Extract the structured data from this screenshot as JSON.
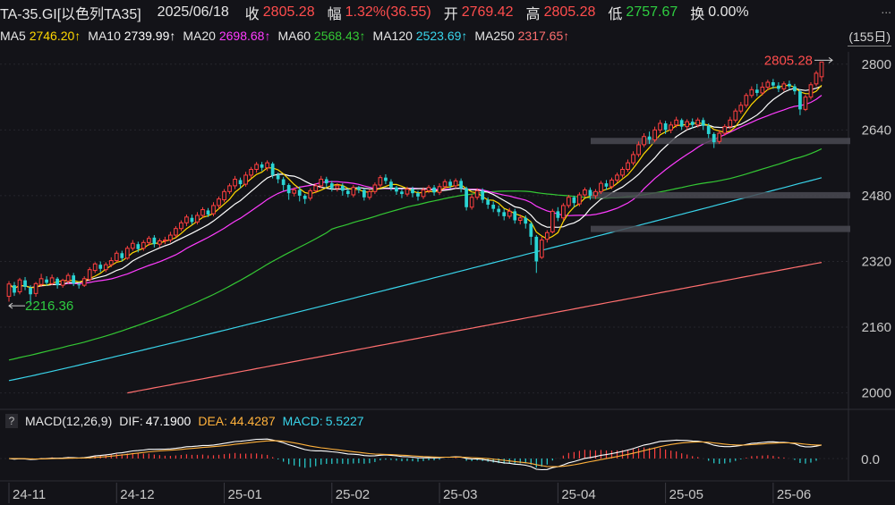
{
  "header": {
    "symbol": "TA-35.GI[以色列TA35]",
    "date": "2025/06/18",
    "close_label": "收",
    "close_value": "2805.28",
    "change_label": "幅",
    "change_value": "1.32%(36.55)",
    "open_label": "开",
    "open_value": "2769.42",
    "high_label": "高",
    "high_value": "2805.28",
    "low_label": "低",
    "low_value": "2757.67",
    "turnover_label": "换",
    "turnover_value": "0.00%",
    "more": "..."
  },
  "ma_legend": [
    {
      "label": "MA5",
      "value": "2746.20↑",
      "color": "#ffd700"
    },
    {
      "label": "MA10",
      "value": "2739.99↑",
      "color": "#ffffff"
    },
    {
      "label": "MA20",
      "value": "2698.68↑",
      "color": "#ff3cff"
    },
    {
      "label": "MA60",
      "value": "2568.43↑",
      "color": "#34c834"
    },
    {
      "label": "MA120",
      "value": "2523.69↑",
      "color": "#39d4ea"
    },
    {
      "label": "MA250",
      "value": "2317.65↑",
      "color": "#ff6f6f"
    }
  ],
  "period_label": "(155日)",
  "macd": {
    "help": "?",
    "title": "MACD(12,26,9)",
    "dif_label": "DIF:",
    "dif_value": "47.1900",
    "dif_color": "#ffffff",
    "dea_label": "DEA:",
    "dea_value": "44.4287",
    "dea_color": "#ffb13b",
    "macd_label": "MACD:",
    "macd_value": "5.5227",
    "macd_color": "#39d4ea"
  },
  "chart_data": {
    "type": "candlestick",
    "price_axis": {
      "ticks": [
        2000,
        2160,
        2320,
        2480,
        2640,
        2800
      ],
      "ylim": [
        1960,
        2830
      ]
    },
    "macd_axis": {
      "ticks": [
        0.0
      ],
      "tick_labels": [
        "0.0"
      ],
      "ylim": [
        -55,
        75
      ]
    },
    "x_labels": [
      "24-11",
      "24-12",
      "25-01",
      "25-02",
      "25-03",
      "25-04",
      "25-05",
      "25-06"
    ],
    "x_label_bar_index": [
      0,
      20,
      40,
      60,
      80,
      102,
      122,
      142
    ],
    "annotations": [
      {
        "text": "2805.28",
        "kind": "max",
        "bar": 153,
        "value": 2805.28
      },
      {
        "text": "2216.36",
        "kind": "min",
        "bar": 0,
        "value": 2216.36
      }
    ],
    "candles": [
      [
        2235,
        2265,
        2222,
        2272
      ],
      [
        2262,
        2244,
        2236,
        2270
      ],
      [
        2246,
        2275,
        2240,
        2280
      ],
      [
        2274,
        2258,
        2250,
        2282
      ],
      [
        2256,
        2240,
        2216,
        2262
      ],
      [
        2242,
        2266,
        2234,
        2270
      ],
      [
        2264,
        2278,
        2258,
        2290
      ],
      [
        2276,
        2268,
        2260,
        2284
      ],
      [
        2266,
        2280,
        2262,
        2288
      ],
      [
        2278,
        2262,
        2254,
        2282
      ],
      [
        2262,
        2274,
        2256,
        2278
      ],
      [
        2272,
        2286,
        2266,
        2292
      ],
      [
        2286,
        2266,
        2260,
        2292
      ],
      [
        2264,
        2262,
        2254,
        2270
      ],
      [
        2262,
        2278,
        2258,
        2284
      ],
      [
        2276,
        2300,
        2272,
        2306
      ],
      [
        2298,
        2314,
        2292,
        2318
      ],
      [
        2312,
        2302,
        2294,
        2320
      ],
      [
        2300,
        2312,
        2294,
        2318
      ],
      [
        2312,
        2322,
        2306,
        2330
      ],
      [
        2322,
        2340,
        2318,
        2346
      ],
      [
        2340,
        2328,
        2320,
        2346
      ],
      [
        2328,
        2352,
        2324,
        2358
      ],
      [
        2352,
        2364,
        2346,
        2372
      ],
      [
        2362,
        2350,
        2342,
        2368
      ],
      [
        2352,
        2366,
        2346,
        2372
      ],
      [
        2366,
        2376,
        2358,
        2382
      ],
      [
        2378,
        2362,
        2354,
        2384
      ],
      [
        2362,
        2370,
        2354,
        2376
      ],
      [
        2370,
        2372,
        2362,
        2380
      ],
      [
        2372,
        2384,
        2366,
        2392
      ],
      [
        2384,
        2400,
        2378,
        2406
      ],
      [
        2400,
        2414,
        2394,
        2420
      ],
      [
        2414,
        2428,
        2406,
        2434
      ],
      [
        2426,
        2416,
        2410,
        2434
      ],
      [
        2416,
        2432,
        2410,
        2440
      ],
      [
        2432,
        2446,
        2426,
        2452
      ],
      [
        2444,
        2434,
        2428,
        2450
      ],
      [
        2436,
        2456,
        2430,
        2464
      ],
      [
        2456,
        2472,
        2448,
        2478
      ],
      [
        2470,
        2490,
        2464,
        2496
      ],
      [
        2490,
        2504,
        2484,
        2510
      ],
      [
        2504,
        2520,
        2496,
        2528
      ],
      [
        2518,
        2508,
        2498,
        2524
      ],
      [
        2508,
        2530,
        2502,
        2538
      ],
      [
        2530,
        2544,
        2522,
        2550
      ],
      [
        2544,
        2556,
        2536,
        2562
      ],
      [
        2556,
        2548,
        2540,
        2562
      ],
      [
        2548,
        2560,
        2540,
        2566
      ],
      [
        2558,
        2530,
        2522,
        2562
      ],
      [
        2530,
        2520,
        2510,
        2536
      ],
      [
        2520,
        2506,
        2492,
        2526
      ],
      [
        2506,
        2486,
        2470,
        2510
      ],
      [
        2486,
        2494,
        2478,
        2500
      ],
      [
        2494,
        2480,
        2466,
        2502
      ],
      [
        2480,
        2472,
        2460,
        2484
      ],
      [
        2474,
        2492,
        2468,
        2498
      ],
      [
        2492,
        2504,
        2486,
        2510
      ],
      [
        2504,
        2520,
        2498,
        2528
      ],
      [
        2520,
        2510,
        2500,
        2526
      ],
      [
        2510,
        2498,
        2490,
        2516
      ],
      [
        2498,
        2504,
        2490,
        2510
      ],
      [
        2504,
        2492,
        2480,
        2510
      ],
      [
        2492,
        2484,
        2476,
        2498
      ],
      [
        2482,
        2500,
        2476,
        2506
      ],
      [
        2500,
        2494,
        2486,
        2504
      ],
      [
        2494,
        2476,
        2468,
        2498
      ],
      [
        2476,
        2490,
        2470,
        2496
      ],
      [
        2490,
        2506,
        2484,
        2512
      ],
      [
        2506,
        2524,
        2500,
        2530
      ],
      [
        2524,
        2516,
        2508,
        2532
      ],
      [
        2514,
        2500,
        2492,
        2520
      ],
      [
        2500,
        2490,
        2482,
        2504
      ],
      [
        2490,
        2484,
        2474,
        2496
      ],
      [
        2484,
        2496,
        2478,
        2502
      ],
      [
        2496,
        2486,
        2476,
        2502
      ],
      [
        2486,
        2478,
        2468,
        2492
      ],
      [
        2478,
        2494,
        2472,
        2500
      ],
      [
        2492,
        2500,
        2486,
        2506
      ],
      [
        2500,
        2488,
        2480,
        2506
      ],
      [
        2488,
        2502,
        2482,
        2510
      ],
      [
        2502,
        2514,
        2496,
        2520
      ],
      [
        2514,
        2504,
        2496,
        2520
      ],
      [
        2504,
        2516,
        2498,
        2522
      ],
      [
        2516,
        2498,
        2488,
        2522
      ],
      [
        2498,
        2452,
        2444,
        2502
      ],
      [
        2452,
        2476,
        2446,
        2484
      ],
      [
        2476,
        2492,
        2470,
        2498
      ],
      [
        2492,
        2470,
        2462,
        2498
      ],
      [
        2470,
        2458,
        2448,
        2476
      ],
      [
        2458,
        2448,
        2440,
        2466
      ],
      [
        2448,
        2440,
        2430,
        2456
      ],
      [
        2440,
        2430,
        2420,
        2448
      ],
      [
        2430,
        2442,
        2424,
        2450
      ],
      [
        2442,
        2420,
        2412,
        2448
      ],
      [
        2420,
        2426,
        2410,
        2434
      ],
      [
        2426,
        2412,
        2400,
        2432
      ],
      [
        2412,
        2380,
        2360,
        2416
      ],
      [
        2380,
        2320,
        2292,
        2384
      ],
      [
        2330,
        2372,
        2326,
        2380
      ],
      [
        2374,
        2390,
        2366,
        2396
      ],
      [
        2392,
        2442,
        2388,
        2448
      ],
      [
        2442,
        2426,
        2418,
        2452
      ],
      [
        2426,
        2456,
        2420,
        2462
      ],
      [
        2456,
        2476,
        2450,
        2482
      ],
      [
        2476,
        2462,
        2452,
        2480
      ],
      [
        2460,
        2482,
        2454,
        2488
      ],
      [
        2482,
        2494,
        2476,
        2500
      ],
      [
        2494,
        2480,
        2470,
        2500
      ],
      [
        2480,
        2490,
        2472,
        2496
      ],
      [
        2490,
        2510,
        2484,
        2516
      ],
      [
        2510,
        2502,
        2494,
        2518
      ],
      [
        2502,
        2518,
        2496,
        2524
      ],
      [
        2518,
        2530,
        2512,
        2536
      ],
      [
        2530,
        2544,
        2524,
        2550
      ],
      [
        2544,
        2560,
        2538,
        2568
      ],
      [
        2560,
        2580,
        2554,
        2588
      ],
      [
        2580,
        2604,
        2574,
        2612
      ],
      [
        2604,
        2624,
        2598,
        2632
      ],
      [
        2624,
        2616,
        2606,
        2636
      ],
      [
        2616,
        2640,
        2610,
        2648
      ],
      [
        2640,
        2656,
        2632,
        2664
      ],
      [
        2656,
        2640,
        2630,
        2662
      ],
      [
        2640,
        2652,
        2632,
        2660
      ],
      [
        2652,
        2664,
        2646,
        2672
      ],
      [
        2664,
        2648,
        2640,
        2668
      ],
      [
        2648,
        2660,
        2640,
        2666
      ],
      [
        2660,
        2652,
        2644,
        2668
      ],
      [
        2652,
        2664,
        2646,
        2670
      ],
      [
        2664,
        2650,
        2640,
        2670
      ],
      [
        2650,
        2630,
        2620,
        2656
      ],
      [
        2630,
        2610,
        2596,
        2634
      ],
      [
        2612,
        2632,
        2606,
        2640
      ],
      [
        2632,
        2648,
        2626,
        2654
      ],
      [
        2648,
        2664,
        2642,
        2672
      ],
      [
        2664,
        2686,
        2658,
        2692
      ],
      [
        2686,
        2700,
        2680,
        2708
      ],
      [
        2700,
        2724,
        2694,
        2730
      ],
      [
        2724,
        2738,
        2718,
        2746
      ],
      [
        2738,
        2730,
        2722,
        2752
      ],
      [
        2730,
        2744,
        2724,
        2756
      ],
      [
        2744,
        2756,
        2736,
        2762
      ],
      [
        2756,
        2748,
        2740,
        2764
      ],
      [
        2748,
        2740,
        2732,
        2756
      ],
      [
        2740,
        2752,
        2734,
        2758
      ],
      [
        2752,
        2746,
        2738,
        2760
      ],
      [
        2746,
        2734,
        2726,
        2752
      ],
      [
        2734,
        2690,
        2676,
        2738
      ],
      [
        2690,
        2720,
        2686,
        2726
      ],
      [
        2720,
        2750,
        2714,
        2756
      ],
      [
        2752,
        2778,
        2746,
        2784
      ],
      [
        2769.42,
        2805.28,
        2757.67,
        2805.28
      ]
    ]
  }
}
